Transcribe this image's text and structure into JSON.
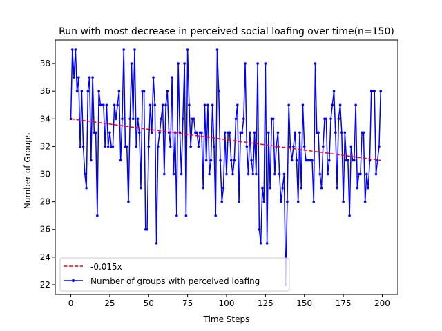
{
  "chart_data": {
    "type": "line",
    "title": "Run with most decrease in perceived social loafing over time(n=150)",
    "xlabel": "Time Steps",
    "ylabel": "Number of Groups",
    "xlim": [
      -10,
      210
    ],
    "ylim": [
      21.3,
      39.7
    ],
    "xticks": [
      0,
      25,
      50,
      75,
      100,
      125,
      150,
      175,
      200
    ],
    "yticks": [
      22,
      24,
      26,
      28,
      30,
      32,
      34,
      36,
      38
    ],
    "grid": false,
    "legend_position": "lower-left",
    "series": [
      {
        "name": "Number of groups with perceived loafing",
        "color": "#0000ff",
        "style": "solid-marker",
        "x": [
          0,
          1,
          2,
          3,
          4,
          5,
          6,
          7,
          8,
          9,
          10,
          11,
          12,
          13,
          14,
          15,
          16,
          17,
          18,
          19,
          20,
          21,
          22,
          23,
          24,
          25,
          26,
          27,
          28,
          29,
          30,
          31,
          32,
          33,
          34,
          35,
          36,
          37,
          38,
          39,
          40,
          41,
          42,
          43,
          44,
          45,
          46,
          47,
          48,
          49,
          50,
          51,
          52,
          53,
          54,
          55,
          56,
          57,
          58,
          59,
          60,
          61,
          62,
          63,
          64,
          65,
          66,
          67,
          68,
          69,
          70,
          71,
          72,
          73,
          74,
          75,
          76,
          77,
          78,
          79,
          80,
          81,
          82,
          83,
          84,
          85,
          86,
          87,
          88,
          89,
          90,
          91,
          92,
          93,
          94,
          95,
          96,
          97,
          98,
          99,
          100,
          101,
          102,
          103,
          104,
          105,
          106,
          107,
          108,
          109,
          110,
          111,
          112,
          113,
          114,
          115,
          116,
          117,
          118,
          119,
          120,
          121,
          122,
          123,
          124,
          125,
          126,
          127,
          128,
          129,
          130,
          131,
          132,
          133,
          134,
          135,
          136,
          137,
          138,
          139,
          140,
          141,
          142,
          143,
          144,
          145,
          146,
          147,
          148,
          149,
          150,
          151,
          152,
          153,
          154,
          155,
          156,
          157,
          158,
          159,
          160,
          161,
          162,
          163,
          164,
          165,
          166,
          167,
          168,
          169,
          170,
          171,
          172,
          173,
          174,
          175,
          176,
          177,
          178,
          179,
          180,
          181,
          182,
          183,
          184,
          185,
          186,
          187,
          188,
          189,
          190,
          191,
          192,
          193,
          194,
          195,
          196,
          197,
          198,
          199
        ],
        "y": [
          34,
          39,
          37,
          39,
          36,
          37,
          32,
          36,
          32,
          30,
          29,
          36,
          37,
          31,
          37,
          33,
          33,
          27,
          36,
          35,
          35,
          35,
          32,
          35,
          32,
          33,
          32,
          32,
          35,
          34,
          35,
          36,
          31,
          34,
          39,
          32,
          32,
          28,
          34,
          38,
          34,
          39,
          32,
          34,
          33,
          29,
          36,
          36,
          26,
          26,
          32,
          35,
          33,
          37,
          35,
          25,
          32,
          33,
          34,
          35,
          30,
          35,
          36,
          33,
          32,
          37,
          30,
          33,
          27,
          38,
          33,
          30,
          34,
          38,
          27,
          39,
          35,
          32,
          34,
          34,
          33,
          33,
          32,
          33,
          33,
          29,
          35,
          31,
          35,
          30,
          31,
          35,
          32,
          27,
          39,
          36,
          31,
          28,
          29,
          33,
          30,
          33,
          33,
          31,
          30,
          31,
          34,
          35,
          28,
          33,
          33,
          34,
          38,
          32,
          30,
          33,
          31,
          30,
          33,
          30,
          38,
          26,
          25,
          29,
          28,
          38,
          25,
          33,
          29,
          34,
          34,
          30,
          32,
          33,
          30,
          28,
          29,
          30,
          22,
          28,
          35,
          32,
          31,
          32,
          33,
          31,
          28,
          33,
          29,
          35,
          32,
          31,
          31,
          31,
          31,
          31,
          28,
          38,
          33,
          33,
          30,
          29,
          32,
          34,
          34,
          30,
          31,
          34,
          35,
          36,
          33,
          29,
          34,
          35,
          33,
          28,
          33,
          31,
          31,
          27,
          32,
          31,
          31,
          35,
          29,
          30,
          30,
          33,
          33,
          28,
          30,
          29,
          31,
          36,
          36,
          36,
          30,
          31,
          32,
          36
        ]
      },
      {
        "name": "-0.015x",
        "color": "#ff0000",
        "style": "dashed",
        "x": [
          0,
          199
        ],
        "y": [
          34.0,
          31.0
        ]
      }
    ]
  }
}
